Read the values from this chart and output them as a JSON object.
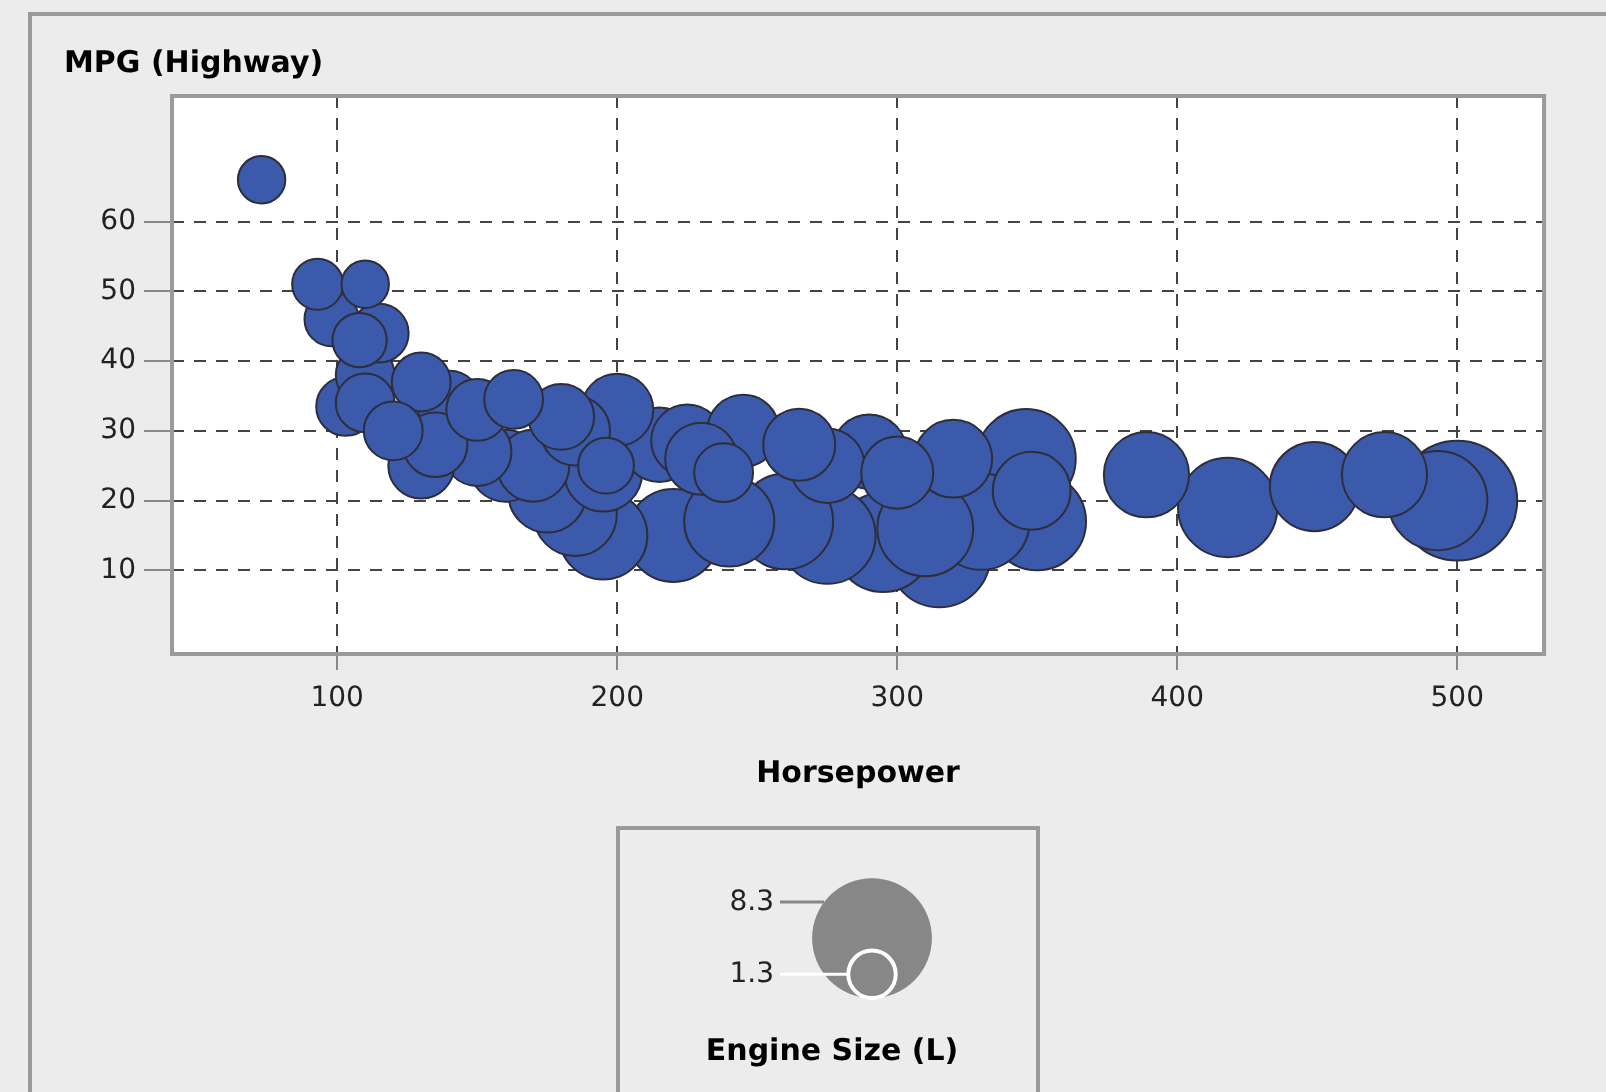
{
  "chart_data": {
    "type": "bubble",
    "ylabel": "MPG (Highway)",
    "xlabel": "Horsepower",
    "legend_title": "Engine Size (L)",
    "color": "#3b5aac",
    "x": [
      500,
      315,
      295,
      346,
      418,
      493,
      350,
      275,
      330,
      260,
      310,
      220,
      240,
      449,
      195,
      389,
      474,
      185,
      175,
      320,
      348,
      195,
      215,
      290,
      275,
      160,
      200,
      225,
      245,
      265,
      300,
      230,
      170,
      185,
      150,
      130,
      180,
      140,
      135,
      150,
      103,
      110,
      115,
      110,
      130,
      163,
      238,
      120,
      196,
      98,
      108,
      93,
      73,
      110
    ],
    "values": [
      20,
      12,
      14,
      26,
      19,
      20,
      17,
      15,
      17,
      17,
      16,
      15,
      17,
      22,
      15,
      23.7,
      23.7,
      18,
      21,
      26,
      21.4,
      24,
      28,
      27,
      25,
      25,
      33,
      28.6,
      30,
      28,
      24,
      26,
      25,
      30,
      27,
      25,
      32,
      34,
      28,
      33,
      33.5,
      38,
      44,
      34,
      37,
      34.5,
      24,
      30,
      25,
      46,
      43,
      51,
      66,
      51
    ],
    "sizes": [
      8.3,
      6.0,
      5.7,
      5.7,
      5.7,
      5.7,
      5.5,
      5.4,
      5.4,
      5.3,
      5.3,
      5.0,
      4.7,
      4.6,
      4.5,
      4.2,
      4.2,
      4.0,
      3.5,
      3.5,
      3.5,
      3.5,
      3.2,
      3.2,
      3.2,
      3.0,
      3.0,
      3.0,
      3.0,
      3.0,
      3.0,
      3.0,
      3.0,
      2.8,
      2.7,
      2.5,
      2.5,
      2.4,
      2.4,
      2.2,
      2.0,
      2.0,
      2.0,
      2.0,
      2.0,
      2.0,
      2.0,
      2.0,
      1.8,
      1.7,
      1.7,
      1.5,
      1.3,
      1.3
    ],
    "size_legend": [
      1.3,
      8.3
    ],
    "xlim": [
      41,
      531
    ],
    "xticks": [
      100,
      200,
      300,
      400,
      500
    ],
    "ylim": [
      -2,
      78
    ],
    "yticks": [
      10,
      20,
      30,
      40,
      50,
      60
    ],
    "grid": true
  }
}
